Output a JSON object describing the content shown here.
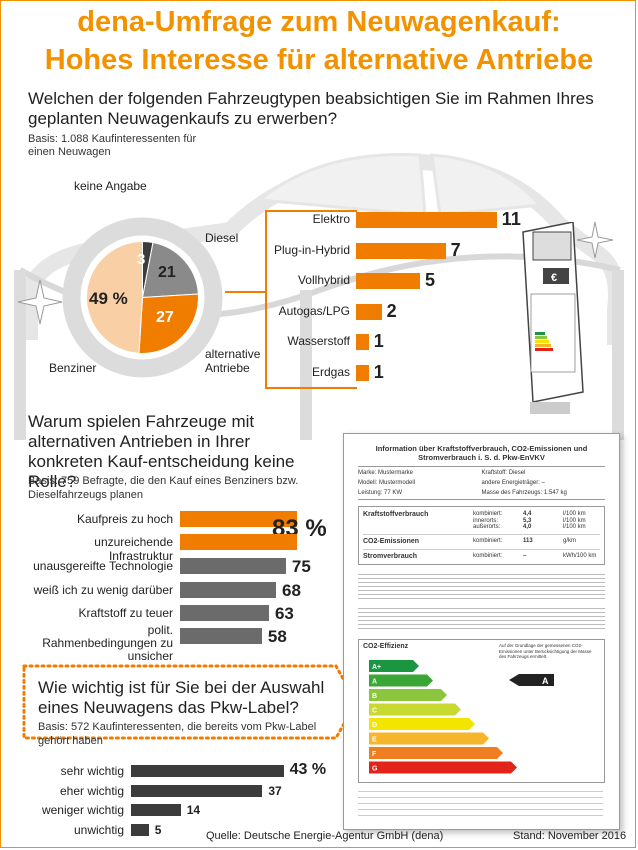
{
  "title_line1": "dena-Umfrage zum Neuwagenkauf:",
  "title_line2": "Hohes Interesse für alternative Antriebe",
  "section1": {
    "question": "Welchen der folgenden Fahrzeugtypen beabsichtigen Sie im Rahmen Ihres geplanten Neuwagenkaufs zu erwerben?",
    "basis": "Basis: 1.088 Kaufinteressenten für einen Neuwagen",
    "donut_labels": {
      "keine_angabe": "keine Angabe",
      "diesel": "Diesel",
      "benziner": "Benziner",
      "alternative": "alternative Antriebe"
    },
    "donut_values": {
      "benziner": "49 %",
      "diesel": "21",
      "alternative": "27",
      "keine_angabe": "3"
    }
  },
  "section2": {
    "question": "Warum spielen Fahrzeuge mit alternativen Antrieben in Ihrer konkreten Kauf-entscheidung keine Rolle?",
    "basis": "Basis: 759 Befragte, die den Kauf eines Benziners bzw. Dieselfahrzeugs planen"
  },
  "section3": {
    "question": "Wie wichtig ist für Sie bei der Auswahl eines Neuwagens das Pkw-Label?",
    "basis": "Basis: 572 Kaufinteressenten, die bereits vom Pkw-Label gehört haben"
  },
  "label_card": {
    "heading": "Information über Kraftstoffverbrauch, CO2-Emissionen und Stromverbrauch i. S. d. Pkw-EnVKV",
    "marke": "Marke: Mustermarke",
    "kraftstoff": "Kraftstoff: Diesel",
    "modell": "Modell: Mustermodell",
    "andere": "andere Energieträger: –",
    "leistung": "Leistung: 77 KW",
    "masse": "Masse des Fahrzeugs: 1.547 kg",
    "kv_title": "Kraftstoffverbrauch",
    "kv_rows": [
      {
        "label": "kombiniert:",
        "value": "4,4",
        "unit": "l/100 km"
      },
      {
        "label": "innerorts:",
        "value": "5,3",
        "unit": "l/100 km"
      },
      {
        "label": "außerorts:",
        "value": "4,0",
        "unit": "l/100 km"
      }
    ],
    "co2_title": "CO2-Emissionen",
    "co2_label": "kombiniert:",
    "co2_value": "113",
    "co2_unit": "g/km",
    "strom_title": "Stromverbrauch",
    "strom_label": "kombiniert:",
    "strom_value": "–",
    "strom_unit": "kWh/100 km",
    "eff_title": "CO2-Effizienz",
    "eff_note": "Auf der Grundlage der gemessenen CO2-Emissionen unter Berücksichtigung der Masse des Fahrzeugs ermittelt.",
    "classes": [
      "A+",
      "A",
      "B",
      "C",
      "D",
      "E",
      "F",
      "G"
    ],
    "class_colors": [
      "#1a9641",
      "#3aa635",
      "#8cc63f",
      "#c8d932",
      "#f4e500",
      "#f7b52c",
      "#ef7d22",
      "#e2231a"
    ],
    "rating": "A"
  },
  "footer": {
    "source": "Quelle: Deutsche Energie-Agentur GmbH (dena)",
    "date": "Stand: November 2016"
  },
  "chart_data": [
    {
      "type": "pie",
      "categories": [
        "Benziner",
        "alternative Antriebe",
        "Diesel",
        "keine Angabe"
      ],
      "values": [
        49,
        27,
        21,
        3
      ],
      "colors": [
        "#f9cfa5",
        "#f07d00",
        "#8a8a8a",
        "#3c3c3c"
      ]
    },
    {
      "type": "bar",
      "categories": [
        "Elektro",
        "Plug-in-Hybrid",
        "Vollhybrid",
        "Autogas/LPG",
        "Wasserstoff",
        "Erdgas"
      ],
      "values": [
        11,
        7,
        5,
        2,
        1,
        1
      ],
      "color": "#f07d00"
    },
    {
      "type": "bar",
      "categories": [
        "Kaufpreis zu hoch",
        "unzureichende Infrastruktur",
        "unausgereifte Technologie",
        "weiß ich zu wenig darüber",
        "Kraftstoff zu teuer",
        "polit. Rahmenbedingungen zu unsicher"
      ],
      "values": [
        83,
        83,
        75,
        68,
        63,
        58
      ],
      "value_labels": [
        "83 %",
        "",
        "75",
        "68",
        "63",
        "58"
      ],
      "colors": [
        "#f07d00",
        "#f07d00",
        "#6b6b6b",
        "#6b6b6b",
        "#6b6b6b",
        "#6b6b6b"
      ]
    },
    {
      "type": "bar",
      "categories": [
        "sehr wichtig",
        "eher wichtig",
        "weniger wichtig",
        "unwichtig"
      ],
      "values": [
        43,
        37,
        14,
        5
      ],
      "value_labels": [
        "43 %",
        "37",
        "14",
        "5"
      ],
      "color": "#3c3c3c"
    }
  ]
}
